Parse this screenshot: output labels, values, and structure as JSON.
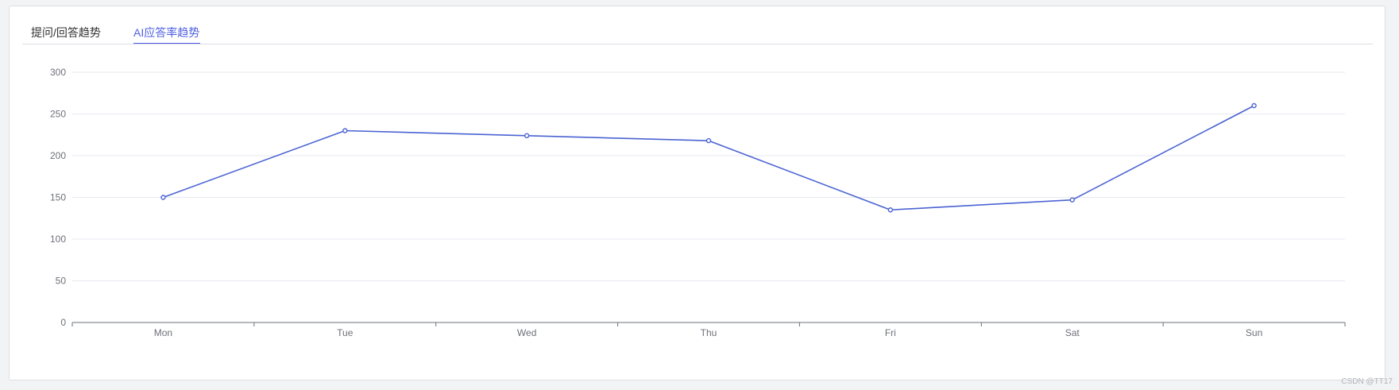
{
  "tabs": [
    {
      "label": "提问/回答趋势",
      "active": false
    },
    {
      "label": "AI应答率趋势",
      "active": true
    }
  ],
  "colors": {
    "accent": "#4e5fe0",
    "line": "#4a63d3",
    "grid": "#e6e9f0",
    "axis": "#6e7079",
    "tick_text": "#6e7079"
  },
  "chart_data": {
    "type": "line",
    "categories": [
      "Mon",
      "Tue",
      "Wed",
      "Thu",
      "Fri",
      "Sat",
      "Sun"
    ],
    "series": [
      {
        "values": [
          150,
          230,
          224,
          218,
          135,
          147,
          260
        ]
      }
    ],
    "y_ticks": [
      0,
      50,
      100,
      150,
      200,
      250,
      300
    ],
    "ylim": [
      0,
      300
    ],
    "grid": true,
    "legend": "none"
  },
  "watermark": "CSDN @TT17"
}
